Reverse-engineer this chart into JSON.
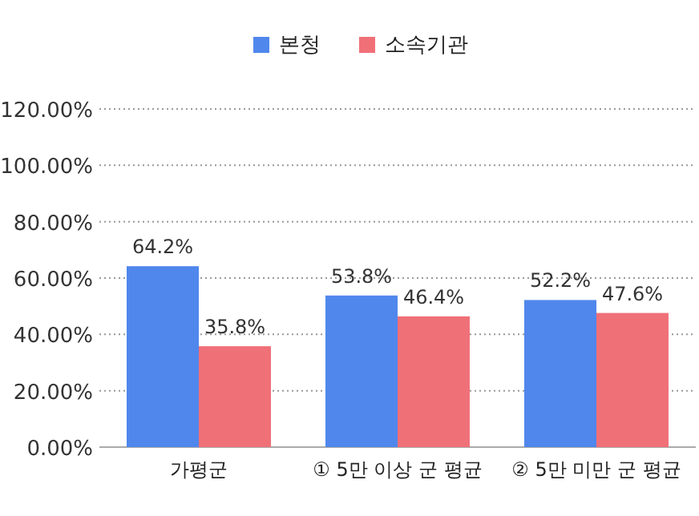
{
  "chart_data": {
    "type": "bar",
    "categories": [
      "가평군",
      "① 5만 이상 군 평균",
      "② 5만 미만 군 평균"
    ],
    "series": [
      {
        "name": "본청",
        "color": "#5087ec",
        "values": [
          64.2,
          53.8,
          52.2
        ],
        "value_labels": [
          "64.2%",
          "53.8%",
          "52.2%"
        ]
      },
      {
        "name": "소속기관",
        "color": "#f07078",
        "values": [
          35.8,
          46.4,
          47.6
        ],
        "value_labels": [
          "35.8%",
          "46.4%",
          "47.6%"
        ]
      }
    ],
    "ylim": [
      0,
      120
    ],
    "yticks": [
      {
        "value": 0,
        "label": "0.00%"
      },
      {
        "value": 20,
        "label": "20.00%"
      },
      {
        "value": 40,
        "label": "40.00%"
      },
      {
        "value": 60,
        "label": "60.00%"
      },
      {
        "value": 80,
        "label": "80.00%"
      },
      {
        "value": 100,
        "label": "100.00%"
      },
      {
        "value": 120,
        "label": "120.00%"
      }
    ],
    "grid": "y",
    "legend": "top"
  }
}
